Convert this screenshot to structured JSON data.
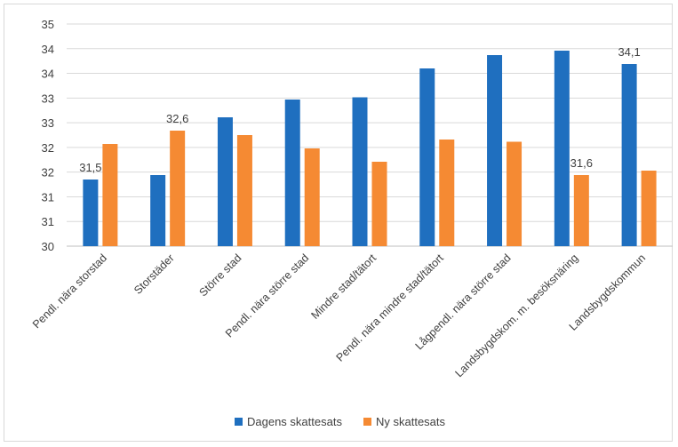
{
  "chart_data": {
    "type": "bar",
    "categories": [
      "Pendl. nära storstad",
      "Storstäder",
      "Större stad",
      "Pendl. nära större stad",
      "Mindre stad/tätort",
      "Pendl. nära mindre stad/tätort",
      "Lågpendl. nära större stad",
      "Landsbygdskom. m. besöksnäring",
      "Landsbygdskommun"
    ],
    "series": [
      {
        "name": "Dagens skattesats",
        "color": "#1f6fbf",
        "values": [
          31.5,
          31.6,
          32.9,
          33.3,
          33.35,
          34.0,
          34.3,
          34.4,
          34.1
        ]
      },
      {
        "name": "Ny skattesats",
        "color": "#f58a33",
        "values": [
          32.3,
          32.6,
          32.5,
          32.2,
          31.9,
          32.4,
          32.35,
          31.6,
          31.7
        ]
      }
    ],
    "data_labels": [
      {
        "series": 0,
        "index": 0,
        "text": "31,5"
      },
      {
        "series": 1,
        "index": 1,
        "text": "32,6"
      },
      {
        "series": 1,
        "index": 7,
        "text": "31,6"
      },
      {
        "series": 0,
        "index": 8,
        "text": "34,1"
      }
    ],
    "y_ticks": [
      "30",
      "31",
      "31",
      "32",
      "32",
      "33",
      "33",
      "34",
      "34",
      "35"
    ],
    "ylim": [
      30,
      35
    ],
    "grid": "horizontal",
    "legend_position": "bottom"
  }
}
